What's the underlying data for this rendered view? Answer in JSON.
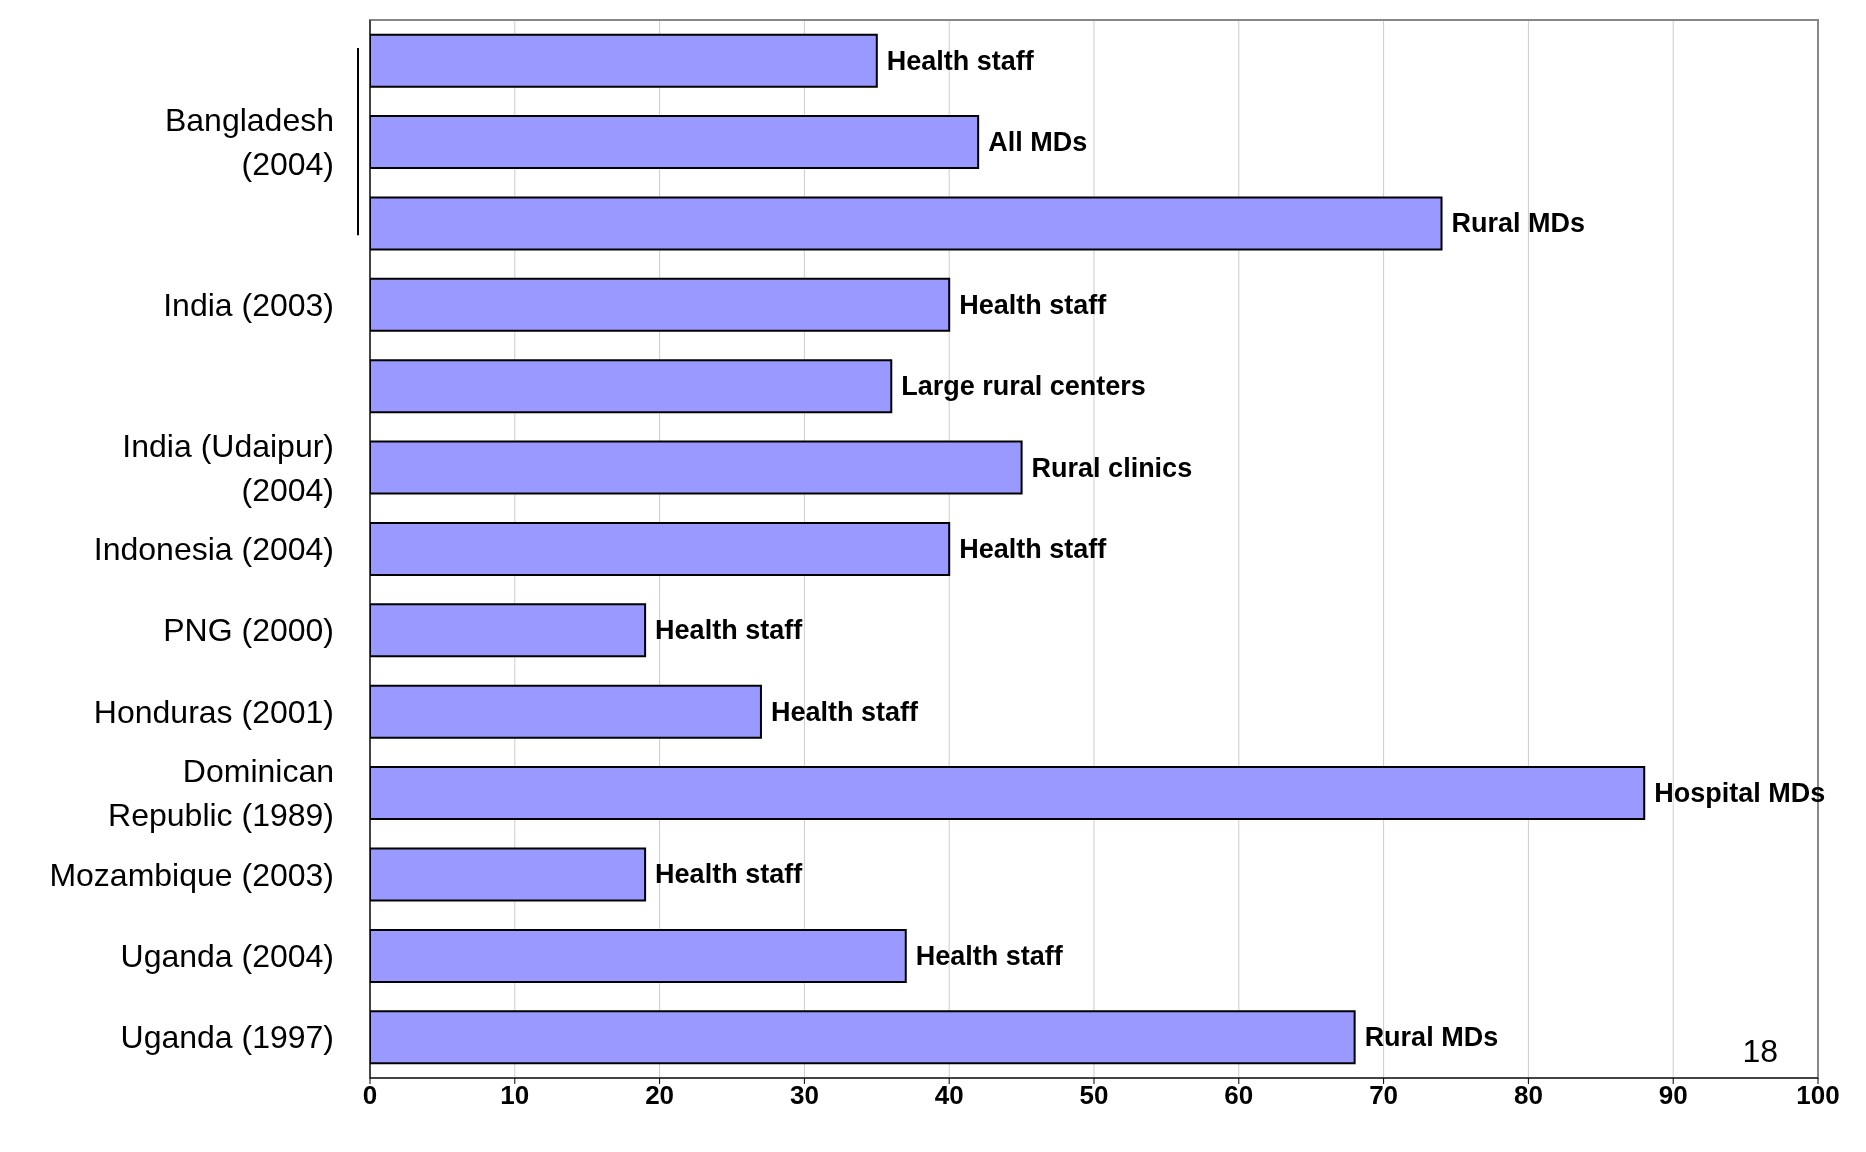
{
  "chart_data": {
    "type": "bar",
    "orientation": "horizontal",
    "categories": [
      null,
      "Bangladesh\n(2004)",
      null,
      "India (2003)",
      null,
      "India (Udaipur)\n(2004)",
      "Indonesia (2004)",
      "PNG (2000)",
      "Honduras (2001)",
      "Dominican\nRepublic (1989)",
      "Mozambique (2003)",
      "Uganda (2004)",
      "Uganda (1997)"
    ],
    "values": [
      35,
      42,
      74,
      40,
      36,
      45,
      40,
      19,
      27,
      88,
      19,
      37,
      68
    ],
    "value_labels": [
      "Health staff",
      "All MDs",
      "Rural MDs",
      "Health staff",
      "Large rural centers",
      "Rural clinics",
      "Health staff",
      "Health staff",
      "Health staff",
      "Hospital MDs",
      "Health staff",
      "Health staff",
      "Rural MDs"
    ],
    "color": "#9999ff",
    "xlim": [
      0,
      100
    ],
    "xticks": [
      0,
      10,
      20,
      30,
      40,
      50,
      60,
      70,
      80,
      90,
      100
    ],
    "grid": "x",
    "legend": false,
    "annotations": [
      "18"
    ]
  }
}
